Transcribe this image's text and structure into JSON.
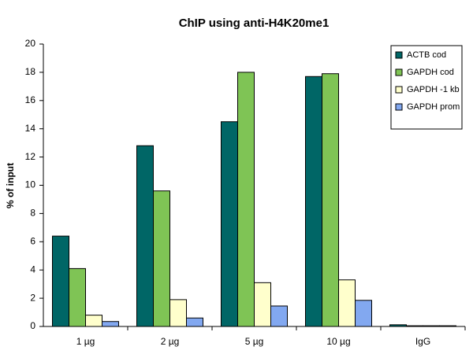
{
  "chart_data": {
    "type": "bar",
    "title": "ChIP using  anti-H4K20me1",
    "y_label": "% of input",
    "categories": [
      "1 µg",
      "2 µg",
      "5 µg",
      "10 µg",
      "IgG"
    ],
    "series": [
      {
        "name": "ACTB cod",
        "color": "#006666",
        "values": [
          6.4,
          12.8,
          14.5,
          17.7,
          0.12
        ]
      },
      {
        "name": "GAPDH cod",
        "color": "#7fc455",
        "values": [
          4.1,
          9.6,
          18.0,
          17.9,
          0.05
        ]
      },
      {
        "name": "GAPDH -1 kb",
        "color": "#ffffcc",
        "values": [
          0.8,
          1.9,
          3.1,
          3.3,
          0.05
        ]
      },
      {
        "name": "GAPDH prom",
        "color": "#82a8f0",
        "values": [
          0.35,
          0.6,
          1.45,
          1.85,
          0.05
        ]
      }
    ],
    "ylim": [
      0,
      20
    ],
    "yticks": [
      0,
      2,
      4,
      6,
      8,
      10,
      12,
      14,
      16,
      18,
      20
    ],
    "grid": false,
    "legend": "upper right"
  }
}
